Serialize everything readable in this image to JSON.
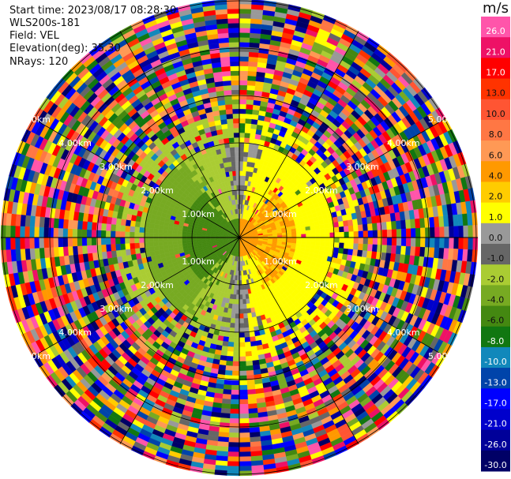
{
  "header": {
    "start_time": "Start time: 2023/08/17 08:28:30",
    "instrument": "WLS200s-181",
    "field": "Field: VEL",
    "elevation": "Elevation(deg): 35.30",
    "nrays": "NRays: 120"
  },
  "colorbar": {
    "unit": "m/s",
    "ticks": [
      "26.0",
      "21.0",
      "17.0",
      "13.0",
      "10.0",
      "8.0",
      "6.0",
      "4.0",
      "2.0",
      "1.0",
      "0.0",
      "-1.0",
      "-2.0",
      "-4.0",
      "-6.0",
      "-8.0",
      "-10.0",
      "-13.0",
      "-17.0",
      "-21.0",
      "-26.0",
      "-30.0"
    ],
    "colors": [
      "#ff55aa",
      "#ee1166",
      "#ff0000",
      "#ff3300",
      "#ff5533",
      "#ff7744",
      "#ff9955",
      "#ff9900",
      "#ffcc00",
      "#ffff00",
      "#999999",
      "#666666",
      "#aacc33",
      "#77aa22",
      "#448811",
      "#117711",
      "#1188bb",
      "#0044aa",
      "#0000ff",
      "#0000cc",
      "#000099",
      "#000066"
    ]
  },
  "range_rings": {
    "labels": [
      "1.00km",
      "2.00km",
      "3.00km",
      "4.00km",
      "5.00km"
    ]
  }
}
